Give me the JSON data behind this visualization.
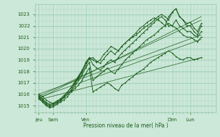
{
  "bg_color": "#cce8d8",
  "grid_color": "#99ccb4",
  "line_color": "#1a5c1a",
  "ylabel_ticks": [
    1015,
    1016,
    1017,
    1018,
    1019,
    1020,
    1021,
    1022,
    1023
  ],
  "ylim": [
    1014.4,
    1023.9
  ],
  "xlim": [
    0.0,
    100.0
  ],
  "xlabel": "Pression niveau de la mer( hPa )",
  "xtick_positions": [
    2,
    10,
    28,
    76,
    86
  ],
  "xtick_labels": [
    "Jeu",
    "Sam",
    "Ven",
    "Dim",
    "Lun"
  ],
  "lines": [
    {
      "x": [
        2,
        92
      ],
      "y": [
        1015.8,
        1022.5
      ]
    },
    {
      "x": [
        2,
        92
      ],
      "y": [
        1015.5,
        1019.2
      ]
    },
    {
      "x": [
        2,
        92
      ],
      "y": [
        1015.6,
        1022.8
      ]
    },
    {
      "x": [
        2,
        92
      ],
      "y": [
        1015.7,
        1020.8
      ]
    },
    {
      "x": [
        2,
        92
      ],
      "y": [
        1016.0,
        1021.2
      ]
    }
  ],
  "series": [
    {
      "x": [
        2,
        4,
        6,
        8,
        10,
        12,
        14,
        16,
        18,
        20,
        22,
        24,
        26,
        28,
        30,
        32,
        34,
        36,
        38,
        40,
        42,
        44,
        46,
        48,
        50,
        52,
        54,
        56,
        58,
        60,
        62,
        64,
        66,
        68,
        70,
        72,
        74,
        76,
        78,
        80,
        82,
        84,
        86,
        88,
        90,
        92
      ],
      "y": [
        1015.8,
        1015.5,
        1015.2,
        1015.0,
        1015.1,
        1015.3,
        1015.5,
        1015.8,
        1016.2,
        1016.6,
        1017.0,
        1017.5,
        1018.0,
        1018.8,
        1019.2,
        1019.0,
        1018.8,
        1019.0,
        1019.5,
        1019.8,
        1020.2,
        1020.0,
        1019.8,
        1020.2,
        1020.5,
        1020.8,
        1021.0,
        1021.2,
        1021.5,
        1021.8,
        1022.0,
        1022.2,
        1022.5,
        1022.8,
        1023.0,
        1022.8,
        1022.5,
        1023.2,
        1023.5,
        1022.8,
        1022.5,
        1022.2,
        1022.3,
        1021.8,
        1021.5,
        1022.2
      ]
    },
    {
      "x": [
        2,
        4,
        6,
        8,
        10,
        12,
        14,
        16,
        18,
        20,
        22,
        24,
        26,
        28,
        30,
        32,
        34,
        36,
        38,
        40,
        42,
        44,
        46,
        48,
        50,
        52,
        54,
        56,
        58,
        60,
        62,
        64,
        66,
        68,
        70,
        72,
        74,
        76,
        78,
        80,
        82,
        84,
        86,
        88,
        90,
        92
      ],
      "y": [
        1015.6,
        1015.3,
        1015.0,
        1014.8,
        1014.9,
        1015.1,
        1015.3,
        1015.5,
        1015.8,
        1016.2,
        1016.5,
        1016.8,
        1017.2,
        1017.8,
        1018.3,
        1016.2,
        1016.4,
        1016.6,
        1016.8,
        1017.0,
        1016.8,
        1016.5,
        1016.3,
        1016.8,
        1017.0,
        1017.3,
        1017.5,
        1017.8,
        1018.0,
        1018.2,
        1018.5,
        1018.8,
        1019.0,
        1019.2,
        1019.4,
        1019.6,
        1019.8,
        1019.6,
        1019.3,
        1019.1,
        1019.0,
        1019.2,
        1019.2,
        1019.0,
        1019.1,
        1019.2
      ]
    },
    {
      "x": [
        2,
        4,
        6,
        8,
        10,
        12,
        14,
        16,
        18,
        20,
        22,
        24,
        26,
        28,
        30,
        32,
        34,
        36,
        38,
        40,
        42,
        44,
        46,
        48,
        50,
        52,
        54,
        56,
        58,
        60,
        62,
        64,
        66,
        68,
        70,
        72,
        74,
        76,
        78,
        80,
        82,
        84,
        86,
        88,
        90,
        92
      ],
      "y": [
        1016.0,
        1015.8,
        1015.5,
        1015.3,
        1015.2,
        1015.3,
        1015.5,
        1015.7,
        1016.0,
        1016.3,
        1016.7,
        1017.2,
        1017.7,
        1018.3,
        1018.8,
        1017.2,
        1017.5,
        1017.8,
        1018.0,
        1018.3,
        1018.0,
        1017.8,
        1018.2,
        1018.6,
        1019.0,
        1019.3,
        1019.6,
        1019.9,
        1020.2,
        1020.5,
        1020.8,
        1021.0,
        1021.2,
        1021.5,
        1021.8,
        1022.0,
        1022.2,
        1022.0,
        1021.8,
        1021.5,
        1021.2,
        1021.0,
        1021.0,
        1020.8,
        1020.6,
        1021.0
      ]
    },
    {
      "x": [
        2,
        4,
        6,
        8,
        10,
        12,
        14,
        16,
        18,
        20,
        22,
        24,
        26,
        28,
        30,
        32,
        34,
        36,
        38,
        40,
        42,
        44,
        46,
        48,
        50,
        52,
        54,
        56,
        58,
        60,
        62,
        64,
        66,
        68,
        70,
        72,
        74,
        76,
        78,
        80,
        82,
        84,
        86,
        88,
        90,
        92
      ],
      "y": [
        1015.7,
        1015.4,
        1015.1,
        1014.9,
        1015.0,
        1015.2,
        1015.4,
        1015.7,
        1016.0,
        1016.4,
        1016.9,
        1017.4,
        1017.9,
        1018.5,
        1019.1,
        1019.2,
        1018.9,
        1018.7,
        1019.1,
        1019.5,
        1019.8,
        1019.5,
        1019.8,
        1020.2,
        1020.5,
        1020.8,
        1021.1,
        1021.4,
        1021.8,
        1022.0,
        1022.3,
        1022.5,
        1022.7,
        1022.5,
        1022.3,
        1022.0,
        1022.8,
        1023.2,
        1023.5,
        1022.8,
        1022.5,
        1022.0,
        1022.0,
        1021.5,
        1021.2,
        1022.0
      ]
    },
    {
      "x": [
        2,
        4,
        6,
        8,
        10,
        12,
        14,
        16,
        18,
        20,
        22,
        24,
        26,
        28,
        30,
        32,
        34,
        36,
        38,
        40,
        42,
        44,
        46,
        48,
        50,
        52,
        54,
        56,
        58,
        60,
        62,
        64,
        66,
        68,
        70,
        72,
        74,
        76,
        78,
        80,
        82,
        84,
        86,
        88,
        90,
        92
      ],
      "y": [
        1015.9,
        1015.6,
        1015.3,
        1015.1,
        1015.2,
        1015.4,
        1015.6,
        1015.9,
        1016.2,
        1016.6,
        1017.1,
        1017.6,
        1018.1,
        1018.7,
        1019.2,
        1018.6,
        1018.3,
        1018.1,
        1018.4,
        1018.8,
        1019.0,
        1018.8,
        1019.2,
        1019.6,
        1019.9,
        1020.2,
        1020.5,
        1020.8,
        1021.1,
        1021.4,
        1021.7,
        1022.0,
        1022.3,
        1022.6,
        1022.8,
        1022.5,
        1022.0,
        1022.0,
        1022.5,
        1022.0,
        1021.8,
        1021.5,
        1021.5,
        1021.2,
        1021.0,
        1021.5
      ]
    }
  ]
}
